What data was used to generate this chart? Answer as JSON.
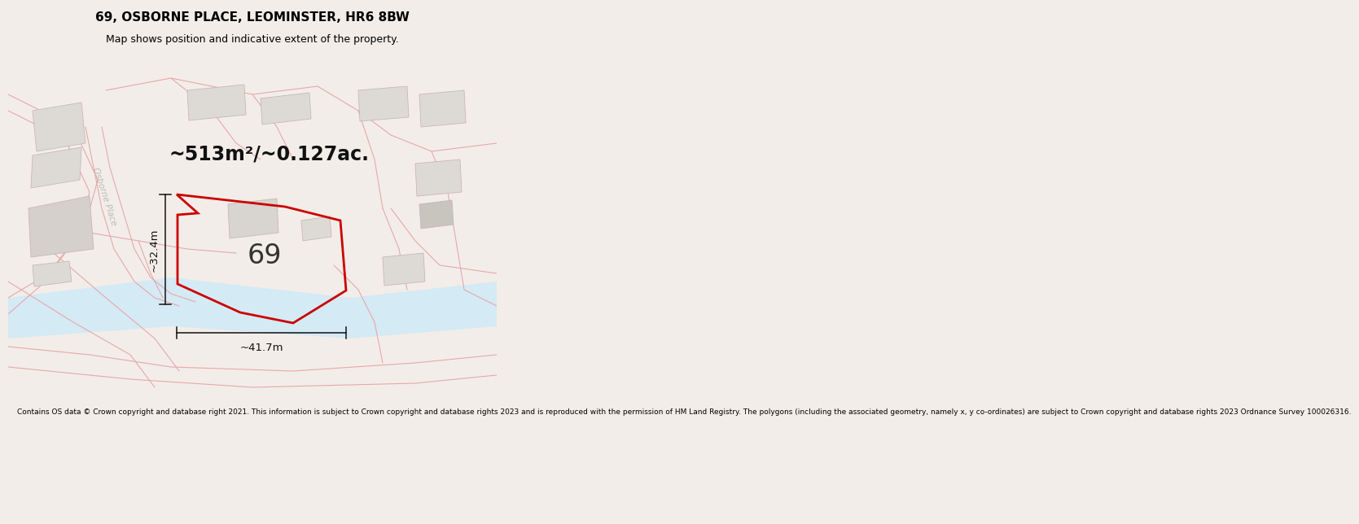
{
  "title": "69, OSBORNE PLACE, LEOMINSTER, HR6 8BW",
  "subtitle": "Map shows position and indicative extent of the property.",
  "area_label": "~513m²/~0.127ac.",
  "plot_number": "69",
  "dim_vertical": "~32.4m",
  "dim_horizontal": "~41.7m",
  "footer": "Contains OS data © Crown copyright and database right 2021. This information is subject to Crown copyright and database rights 2023 and is reproduced with the permission of HM Land Registry. The polygons (including the associated geometry, namely x, y co-ordinates) are subject to Crown copyright and database rights 2023 Ordnance Survey 100026316.",
  "bg_color": "#f2ede9",
  "map_bg": "#f2ede9",
  "road_color": "#f9dada",
  "road_outline": "#e8a8a8",
  "water_color": "#d4eaf5",
  "building_fill": "#dddad5",
  "building_outline": "#c8b8b8",
  "highlight_stroke": "#cc0000",
  "dim_color": "#111111",
  "label_color": "#aaaaaa",
  "title_fontsize": 11,
  "subtitle_fontsize": 9,
  "area_fontsize": 17,
  "plot_num_fontsize": 24,
  "dim_fontsize": 9.5,
  "footer_fontsize": 6.5,
  "osborne_label_color": "#bbbbbb"
}
